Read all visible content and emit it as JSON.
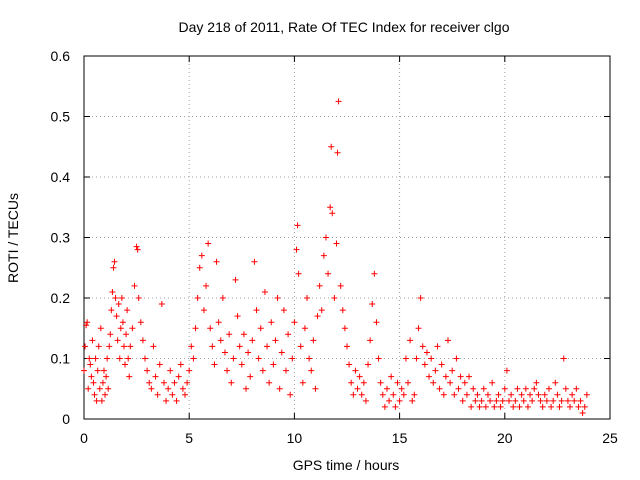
{
  "chart_data": {
    "type": "scatter",
    "title": "Day 218 of 2011, Rate Of TEC Index for receiver clgo",
    "xlabel": "GPS time / hours",
    "ylabel": "ROTI / TECUs",
    "xlim": [
      0,
      25
    ],
    "ylim": [
      0,
      0.6
    ],
    "xticks": [
      "0",
      "5",
      "10",
      "15",
      "20",
      "25"
    ],
    "yticks": [
      "0",
      "0.1",
      "0.2",
      "0.3",
      "0.4",
      "0.5",
      "0.6"
    ],
    "grid": true,
    "marker": "plus",
    "color": "#ff0000",
    "series": [
      {
        "points": [
          [
            0.0,
            0.08
          ],
          [
            0.05,
            0.12
          ],
          [
            0.1,
            0.155
          ],
          [
            0.15,
            0.16
          ],
          [
            0.2,
            0.05
          ],
          [
            0.25,
            0.1
          ],
          [
            0.3,
            0.09
          ],
          [
            0.35,
            0.07
          ],
          [
            0.4,
            0.13
          ],
          [
            0.45,
            0.06
          ],
          [
            0.5,
            0.04
          ],
          [
            0.55,
            0.1
          ],
          [
            0.6,
            0.03
          ],
          [
            0.65,
            0.08
          ],
          [
            0.7,
            0.12
          ],
          [
            0.75,
            0.05
          ],
          [
            0.8,
            0.15
          ],
          [
            0.85,
            0.03
          ],
          [
            0.9,
            0.06
          ],
          [
            0.95,
            0.08
          ],
          [
            1.0,
            0.04
          ],
          [
            1.05,
            0.07
          ],
          [
            1.1,
            0.1
          ],
          [
            1.15,
            0.05
          ],
          [
            1.2,
            0.12
          ],
          [
            1.25,
            0.14
          ],
          [
            1.3,
            0.18
          ],
          [
            1.35,
            0.21
          ],
          [
            1.4,
            0.25
          ],
          [
            1.45,
            0.26
          ],
          [
            1.5,
            0.2
          ],
          [
            1.55,
            0.17
          ],
          [
            1.6,
            0.13
          ],
          [
            1.65,
            0.19
          ],
          [
            1.7,
            0.1
          ],
          [
            1.75,
            0.15
          ],
          [
            1.8,
            0.2
          ],
          [
            1.85,
            0.16
          ],
          [
            1.9,
            0.12
          ],
          [
            1.95,
            0.09
          ],
          [
            2.0,
            0.14
          ],
          [
            2.05,
            0.18
          ],
          [
            2.1,
            0.1
          ],
          [
            2.15,
            0.07
          ],
          [
            2.2,
            0.12
          ],
          [
            2.3,
            0.15
          ],
          [
            2.4,
            0.22
          ],
          [
            2.5,
            0.285
          ],
          [
            2.55,
            0.28
          ],
          [
            2.6,
            0.2
          ],
          [
            2.7,
            0.16
          ],
          [
            2.8,
            0.13
          ],
          [
            2.9,
            0.1
          ],
          [
            3.0,
            0.08
          ],
          [
            3.1,
            0.06
          ],
          [
            3.2,
            0.05
          ],
          [
            3.3,
            0.12
          ],
          [
            3.4,
            0.07
          ],
          [
            3.5,
            0.04
          ],
          [
            3.6,
            0.09
          ],
          [
            3.7,
            0.19
          ],
          [
            3.8,
            0.06
          ],
          [
            3.9,
            0.03
          ],
          [
            4.0,
            0.05
          ],
          [
            4.1,
            0.08
          ],
          [
            4.2,
            0.04
          ],
          [
            4.3,
            0.06
          ],
          [
            4.4,
            0.03
          ],
          [
            4.5,
            0.07
          ],
          [
            4.6,
            0.09
          ],
          [
            4.7,
            0.05
          ],
          [
            4.8,
            0.04
          ],
          [
            4.9,
            0.06
          ],
          [
            5.0,
            0.08
          ],
          [
            5.1,
            0.12
          ],
          [
            5.2,
            0.1
          ],
          [
            5.3,
            0.15
          ],
          [
            5.4,
            0.2
          ],
          [
            5.5,
            0.25
          ],
          [
            5.6,
            0.27
          ],
          [
            5.7,
            0.18
          ],
          [
            5.8,
            0.22
          ],
          [
            5.9,
            0.29
          ],
          [
            6.0,
            0.15
          ],
          [
            6.1,
            0.12
          ],
          [
            6.2,
            0.09
          ],
          [
            6.3,
            0.26
          ],
          [
            6.4,
            0.16
          ],
          [
            6.5,
            0.13
          ],
          [
            6.6,
            0.2
          ],
          [
            6.7,
            0.11
          ],
          [
            6.8,
            0.08
          ],
          [
            6.9,
            0.14
          ],
          [
            7.0,
            0.06
          ],
          [
            7.1,
            0.1
          ],
          [
            7.2,
            0.23
          ],
          [
            7.3,
            0.17
          ],
          [
            7.4,
            0.12
          ],
          [
            7.5,
            0.09
          ],
          [
            7.6,
            0.14
          ],
          [
            7.7,
            0.05
          ],
          [
            7.8,
            0.11
          ],
          [
            7.9,
            0.07
          ],
          [
            8.0,
            0.13
          ],
          [
            8.1,
            0.26
          ],
          [
            8.2,
            0.18
          ],
          [
            8.3,
            0.1
          ],
          [
            8.4,
            0.15
          ],
          [
            8.5,
            0.08
          ],
          [
            8.6,
            0.21
          ],
          [
            8.7,
            0.12
          ],
          [
            8.8,
            0.06
          ],
          [
            8.9,
            0.16
          ],
          [
            9.0,
            0.09
          ],
          [
            9.1,
            0.13
          ],
          [
            9.2,
            0.2
          ],
          [
            9.3,
            0.05
          ],
          [
            9.4,
            0.11
          ],
          [
            9.5,
            0.18
          ],
          [
            9.6,
            0.08
          ],
          [
            9.7,
            0.14
          ],
          [
            9.8,
            0.04
          ],
          [
            9.9,
            0.1
          ],
          [
            10.0,
            0.16
          ],
          [
            10.1,
            0.28
          ],
          [
            10.15,
            0.32
          ],
          [
            10.2,
            0.24
          ],
          [
            10.3,
            0.12
          ],
          [
            10.4,
            0.06
          ],
          [
            10.5,
            0.15
          ],
          [
            10.6,
            0.2
          ],
          [
            10.7,
            0.1
          ],
          [
            10.8,
            0.08
          ],
          [
            10.9,
            0.13
          ],
          [
            11.0,
            0.05
          ],
          [
            11.1,
            0.17
          ],
          [
            11.2,
            0.22
          ],
          [
            11.3,
            0.18
          ],
          [
            11.4,
            0.27
          ],
          [
            11.5,
            0.3
          ],
          [
            11.6,
            0.24
          ],
          [
            11.7,
            0.35
          ],
          [
            11.75,
            0.45
          ],
          [
            11.8,
            0.34
          ],
          [
            11.9,
            0.2
          ],
          [
            12.0,
            0.29
          ],
          [
            12.05,
            0.44
          ],
          [
            12.1,
            0.525
          ],
          [
            12.2,
            0.22
          ],
          [
            12.3,
            0.18
          ],
          [
            12.4,
            0.15
          ],
          [
            12.5,
            0.12
          ],
          [
            12.6,
            0.09
          ],
          [
            12.7,
            0.06
          ],
          [
            12.8,
            0.04
          ],
          [
            12.9,
            0.08
          ],
          [
            13.0,
            0.05
          ],
          [
            13.1,
            0.07
          ],
          [
            13.2,
            0.04
          ],
          [
            13.3,
            0.06
          ],
          [
            13.4,
            0.03
          ],
          [
            13.5,
            0.09
          ],
          [
            13.6,
            0.13
          ],
          [
            13.7,
            0.19
          ],
          [
            13.8,
            0.24
          ],
          [
            13.9,
            0.16
          ],
          [
            14.0,
            0.1
          ],
          [
            14.1,
            0.06
          ],
          [
            14.2,
            0.04
          ],
          [
            14.3,
            0.02
          ],
          [
            14.4,
            0.05
          ],
          [
            14.5,
            0.03
          ],
          [
            14.6,
            0.07
          ],
          [
            14.7,
            0.04
          ],
          [
            14.8,
            0.02
          ],
          [
            14.9,
            0.06
          ],
          [
            15.0,
            0.03
          ],
          [
            15.1,
            0.05
          ],
          [
            15.2,
            0.04
          ],
          [
            15.3,
            0.1
          ],
          [
            15.4,
            0.06
          ],
          [
            15.5,
            0.13
          ],
          [
            15.6,
            0.03
          ],
          [
            15.7,
            0.04
          ],
          [
            15.8,
            0.1
          ],
          [
            15.9,
            0.15
          ],
          [
            16.0,
            0.2
          ],
          [
            16.1,
            0.12
          ],
          [
            16.2,
            0.09
          ],
          [
            16.3,
            0.11
          ],
          [
            16.4,
            0.07
          ],
          [
            16.5,
            0.1
          ],
          [
            16.6,
            0.06
          ],
          [
            16.7,
            0.08
          ],
          [
            16.8,
            0.12
          ],
          [
            16.9,
            0.05
          ],
          [
            17.0,
            0.09
          ],
          [
            17.1,
            0.04
          ],
          [
            17.2,
            0.07
          ],
          [
            17.3,
            0.13
          ],
          [
            17.4,
            0.06
          ],
          [
            17.5,
            0.08
          ],
          [
            17.6,
            0.04
          ],
          [
            17.7,
            0.1
          ],
          [
            17.8,
            0.05
          ],
          [
            17.9,
            0.07
          ],
          [
            18.0,
            0.03
          ],
          [
            18.1,
            0.06
          ],
          [
            18.2,
            0.04
          ],
          [
            18.3,
            0.07
          ],
          [
            18.4,
            0.02
          ],
          [
            18.5,
            0.05
          ],
          [
            18.6,
            0.03
          ],
          [
            18.7,
            0.04
          ],
          [
            18.8,
            0.02
          ],
          [
            18.9,
            0.03
          ],
          [
            19.0,
            0.05
          ],
          [
            19.1,
            0.02
          ],
          [
            19.2,
            0.04
          ],
          [
            19.3,
            0.03
          ],
          [
            19.4,
            0.06
          ],
          [
            19.5,
            0.02
          ],
          [
            19.6,
            0.03
          ],
          [
            19.7,
            0.04
          ],
          [
            19.8,
            0.02
          ],
          [
            19.9,
            0.03
          ],
          [
            20.0,
            0.05
          ],
          [
            20.1,
            0.08
          ],
          [
            20.2,
            0.03
          ],
          [
            20.3,
            0.04
          ],
          [
            20.4,
            0.02
          ],
          [
            20.5,
            0.03
          ],
          [
            20.6,
            0.05
          ],
          [
            20.7,
            0.02
          ],
          [
            20.8,
            0.04
          ],
          [
            20.9,
            0.03
          ],
          [
            21.0,
            0.05
          ],
          [
            21.1,
            0.02
          ],
          [
            21.2,
            0.04
          ],
          [
            21.3,
            0.03
          ],
          [
            21.4,
            0.05
          ],
          [
            21.5,
            0.06
          ],
          [
            21.6,
            0.04
          ],
          [
            21.7,
            0.03
          ],
          [
            21.8,
            0.02
          ],
          [
            21.9,
            0.04
          ],
          [
            22.0,
            0.03
          ],
          [
            22.1,
            0.05
          ],
          [
            22.2,
            0.02
          ],
          [
            22.3,
            0.03
          ],
          [
            22.4,
            0.06
          ],
          [
            22.5,
            0.04
          ],
          [
            22.6,
            0.02
          ],
          [
            22.7,
            0.03
          ],
          [
            22.8,
            0.1
          ],
          [
            22.9,
            0.05
          ],
          [
            23.0,
            0.03
          ],
          [
            23.1,
            0.02
          ],
          [
            23.2,
            0.04
          ],
          [
            23.3,
            0.03
          ],
          [
            23.4,
            0.05
          ],
          [
            23.5,
            0.02
          ],
          [
            23.6,
            0.03
          ],
          [
            23.7,
            0.01
          ],
          [
            23.8,
            0.02
          ],
          [
            23.9,
            0.04
          ]
        ]
      }
    ]
  }
}
